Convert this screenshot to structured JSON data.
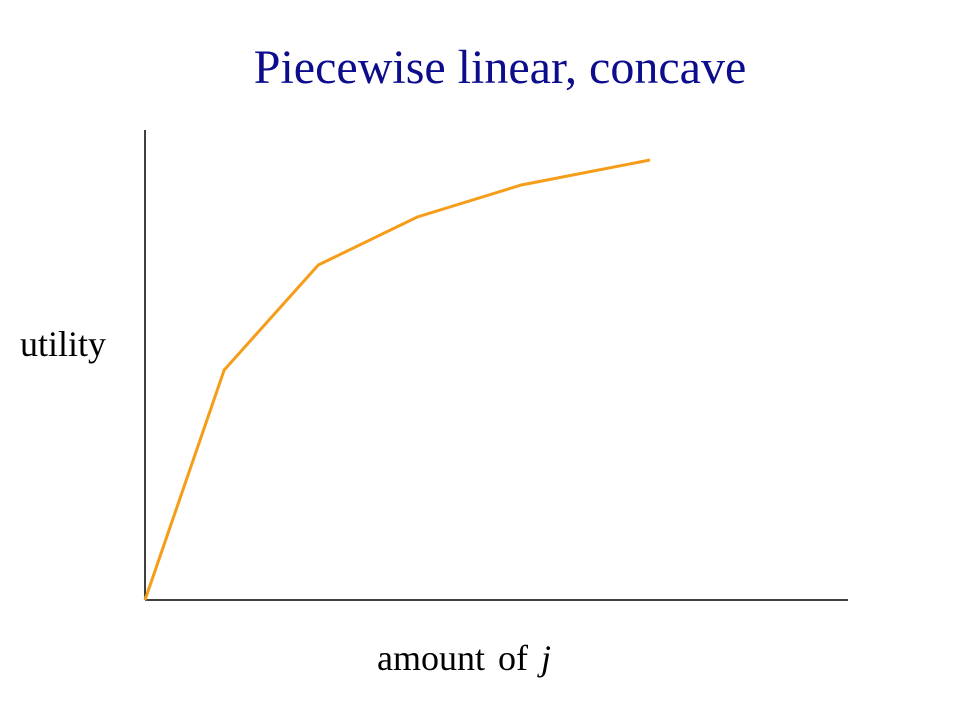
{
  "title": "Piecewise linear, concave",
  "colors": {
    "title": "#0c0c8c",
    "line": "#f59d19",
    "axis": "#000000"
  },
  "chart_data": {
    "type": "line",
    "title": "Piecewise linear, concave",
    "xlabel_prefix": "amount of",
    "xlabel_var": "j",
    "ylabel": "utility",
    "x": [
      0,
      0.8,
      1.75,
      2.75,
      3.8,
      5.1
    ],
    "y": [
      0,
      2.3,
      3.35,
      3.83,
      4.15,
      4.4
    ],
    "xlim": [
      0,
      7.1
    ],
    "ylim": [
      0,
      4.7
    ],
    "grid": false,
    "legend": "none",
    "ticks": "none"
  }
}
